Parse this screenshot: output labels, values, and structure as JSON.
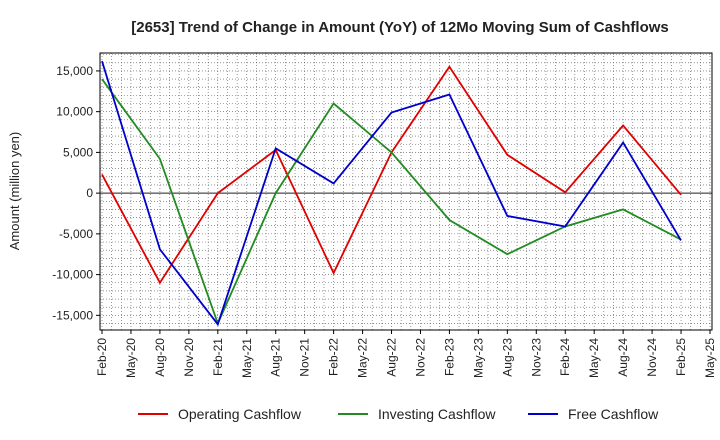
{
  "chart_data": {
    "type": "line",
    "title": "[2653]  Trend of Change in Amount (YoY) of 12Mo Moving Sum of Cashflows",
    "xlabel": "",
    "ylabel": "Amount (million yen)",
    "ylim": [
      -16800,
      17200
    ],
    "yticks": [
      15000,
      10000,
      5000,
      0,
      -5000,
      -10000,
      -15000
    ],
    "ytick_labels": [
      "15,000",
      "10,000",
      "5,000",
      "0",
      "-5,000",
      "-10,000",
      "-15,000"
    ],
    "categories": [
      "Feb-20",
      "May-20",
      "Aug-20",
      "Nov-20",
      "Feb-21",
      "May-21",
      "Aug-21",
      "Nov-21",
      "Feb-22",
      "May-22",
      "Aug-22",
      "Nov-22",
      "Feb-23",
      "May-23",
      "Aug-23",
      "Nov-23",
      "Feb-24",
      "May-24",
      "Aug-24",
      "Nov-24",
      "Feb-25",
      "May-25"
    ],
    "series": [
      {
        "name": "Operating Cashflow",
        "color": "#e00000",
        "points": [
          [
            0,
            2300
          ],
          [
            2,
            -11000
          ],
          [
            4,
            0
          ],
          [
            6,
            5300
          ],
          [
            8,
            -9800
          ],
          [
            10,
            5000
          ],
          [
            12,
            15500
          ],
          [
            14,
            4700
          ],
          [
            16,
            100
          ],
          [
            18,
            8300
          ],
          [
            20,
            -200
          ]
        ]
      },
      {
        "name": "Investing Cashflow",
        "color": "#228b22",
        "points": [
          [
            0,
            14000
          ],
          [
            2,
            4200
          ],
          [
            4,
            -16000
          ],
          [
            6,
            0
          ],
          [
            8,
            11000
          ],
          [
            10,
            5000
          ],
          [
            12,
            -3300
          ],
          [
            14,
            -7500
          ],
          [
            16,
            -4100
          ],
          [
            18,
            -2000
          ],
          [
            20,
            -5700
          ]
        ]
      },
      {
        "name": "Free Cashflow",
        "color": "#0000cc",
        "points": [
          [
            0,
            16200
          ],
          [
            2,
            -6900
          ],
          [
            4,
            -16100
          ],
          [
            6,
            5500
          ],
          [
            8,
            1200
          ],
          [
            10,
            9900
          ],
          [
            12,
            12100
          ],
          [
            14,
            -2800
          ],
          [
            16,
            -4100
          ],
          [
            18,
            6200
          ],
          [
            20,
            -5800
          ]
        ]
      }
    ],
    "legend_position": "bottom",
    "grid": true
  }
}
